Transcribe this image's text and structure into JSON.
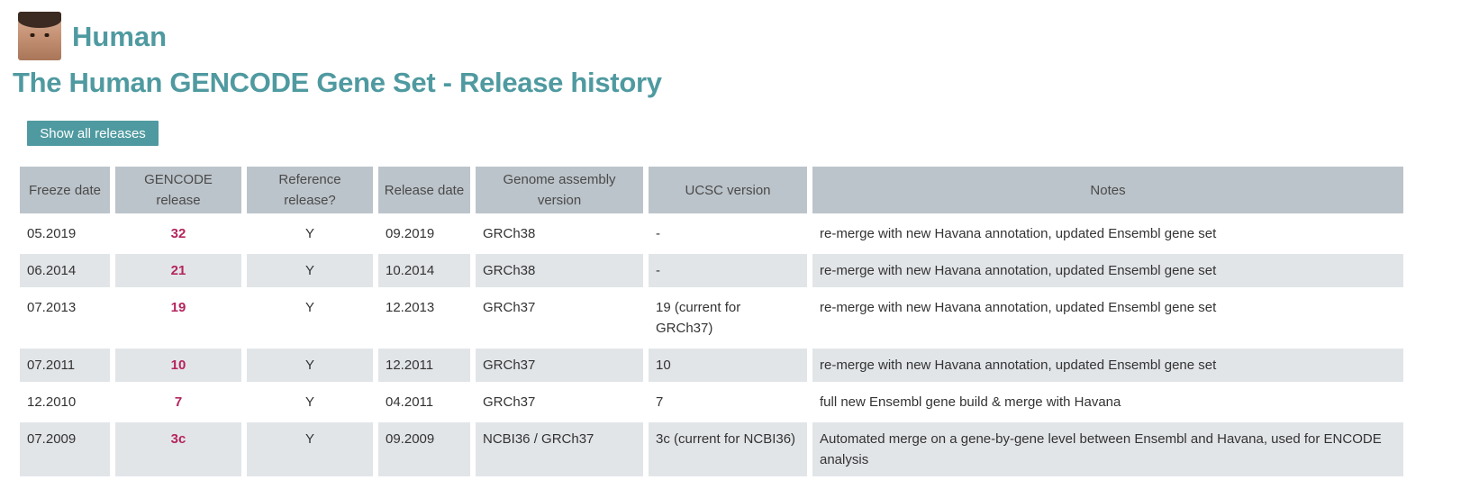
{
  "header": {
    "species": "Human",
    "title": "The Human GENCODE Gene Set - Release history"
  },
  "toolbar": {
    "show_all_label": "Show all releases"
  },
  "table": {
    "columns": [
      "Freeze date",
      "GENCODE release",
      "Reference release?",
      "Release date",
      "Genome assembly version",
      "UCSC version",
      "Notes"
    ],
    "rows": [
      {
        "freeze": "05.2019",
        "release": "32",
        "reference": "Y",
        "release_date": "09.2019",
        "assembly": "GRCh38",
        "ucsc": "-",
        "notes": "re-merge with new Havana annotation, updated Ensembl gene set"
      },
      {
        "freeze": "06.2014",
        "release": "21",
        "reference": "Y",
        "release_date": "10.2014",
        "assembly": "GRCh38",
        "ucsc": "-",
        "notes": "re-merge with new Havana annotation, updated Ensembl gene set"
      },
      {
        "freeze": "07.2013",
        "release": "19",
        "reference": "Y",
        "release_date": "12.2013",
        "assembly": "GRCh37",
        "ucsc": "19 (current for GRCh37)",
        "notes": "re-merge with new Havana annotation, updated Ensembl gene set"
      },
      {
        "freeze": "07.2011",
        "release": "10",
        "reference": "Y",
        "release_date": "12.2011",
        "assembly": "GRCh37",
        "ucsc": "10",
        "notes": "re-merge with new Havana annotation, updated Ensembl gene set"
      },
      {
        "freeze": "12.2010",
        "release": "7",
        "reference": "Y",
        "release_date": "04.2011",
        "assembly": "GRCh37",
        "ucsc": "7",
        "notes": "full new Ensembl gene build & merge with Havana"
      },
      {
        "freeze": "07.2009",
        "release": "3c",
        "reference": "Y",
        "release_date": "09.2009",
        "assembly": "NCBI36 / GRCh37",
        "ucsc": "3c (current for NCBI36)",
        "notes": "Automated merge on a gene-by-gene level between Ensembl and Havana, used for ENCODE analysis"
      }
    ]
  }
}
